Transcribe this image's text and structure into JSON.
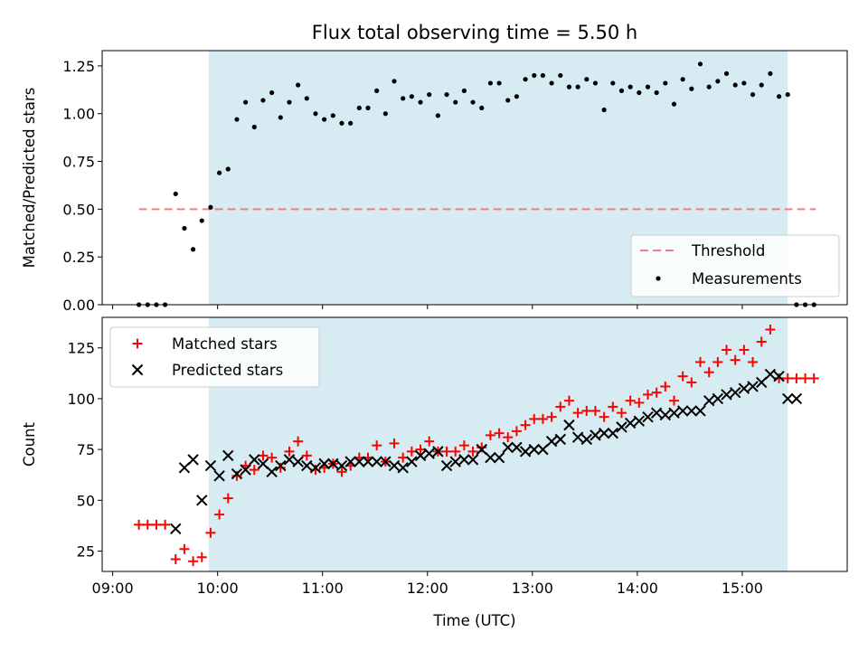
{
  "chart_data": [
    {
      "type": "scatter",
      "title": "Flux total observing time = 5.50 h",
      "xlabel": "",
      "ylabel": "Matched/Predicted stars",
      "xlim": [
        "09:00",
        "16:00"
      ],
      "ylim": [
        0,
        1.33
      ],
      "yticks": [
        "0.00",
        "0.25",
        "0.50",
        "0.75",
        "1.00",
        "1.25"
      ],
      "shaded_span": {
        "start": "09:55",
        "end": "15:26",
        "color": "#add8e6"
      },
      "threshold": {
        "name": "Threshold",
        "value": 0.5,
        "x_start": "09:15",
        "x_end": "15:42",
        "color": "#f08080"
      },
      "series": [
        {
          "name": "Measurements",
          "color": "#000000",
          "x": [
            "09:15",
            "09:20",
            "09:25",
            "09:30",
            "09:36",
            "09:41",
            "09:46",
            "09:51",
            "09:56",
            "10:01",
            "10:06",
            "10:11",
            "10:16",
            "10:21",
            "10:26",
            "10:31",
            "10:36",
            "10:41",
            "10:46",
            "10:51",
            "10:56",
            "11:01",
            "11:06",
            "11:11",
            "11:16",
            "11:21",
            "11:26",
            "11:31",
            "11:36",
            "11:41",
            "11:46",
            "11:51",
            "11:56",
            "12:01",
            "12:06",
            "12:11",
            "12:16",
            "12:21",
            "12:26",
            "12:31",
            "12:36",
            "12:41",
            "12:46",
            "12:51",
            "12:56",
            "13:01",
            "13:06",
            "13:11",
            "13:16",
            "13:21",
            "13:26",
            "13:31",
            "13:36",
            "13:41",
            "13:46",
            "13:51",
            "13:56",
            "14:01",
            "14:06",
            "14:11",
            "14:16",
            "14:21",
            "14:26",
            "14:31",
            "14:36",
            "14:41",
            "14:46",
            "14:51",
            "14:56",
            "15:01",
            "15:06",
            "15:11",
            "15:16",
            "15:21",
            "15:26",
            "15:31",
            "15:36",
            "15:41"
          ],
          "y": [
            0.0,
            0.0,
            0.0,
            0.0,
            0.58,
            0.4,
            0.29,
            0.44,
            0.51,
            0.69,
            0.71,
            0.97,
            1.06,
            0.93,
            1.07,
            1.11,
            0.98,
            1.06,
            1.15,
            1.08,
            1.0,
            0.97,
            0.99,
            0.95,
            0.95,
            1.03,
            1.03,
            1.12,
            1.0,
            1.17,
            1.08,
            1.09,
            1.06,
            1.1,
            0.99,
            1.1,
            1.06,
            1.12,
            1.06,
            1.03,
            1.16,
            1.16,
            1.07,
            1.09,
            1.18,
            1.2,
            1.2,
            1.16,
            1.2,
            1.14,
            1.14,
            1.18,
            1.16,
            1.02,
            1.16,
            1.12,
            1.14,
            1.11,
            1.14,
            1.11,
            1.16,
            1.05,
            1.18,
            1.13,
            1.26,
            1.14,
            1.17,
            1.21,
            1.15,
            1.16,
            1.1,
            1.15,
            1.21,
            1.09,
            1.1,
            0.0,
            0.0,
            0.0
          ]
        }
      ],
      "legend": {
        "position": "lower right",
        "entries": [
          "Threshold",
          "Measurements"
        ]
      }
    },
    {
      "type": "scatter",
      "title": "",
      "xlabel": "Time (UTC)",
      "ylabel": "Count",
      "xlim": [
        "09:00",
        "16:00"
      ],
      "ylim": [
        15,
        140
      ],
      "xticks": [
        "09:00",
        "10:00",
        "11:00",
        "12:00",
        "13:00",
        "14:00",
        "15:00"
      ],
      "yticks": [
        "25",
        "50",
        "75",
        "100",
        "125"
      ],
      "shaded_span": {
        "start": "09:55",
        "end": "15:26",
        "color": "#add8e6"
      },
      "series": [
        {
          "name": "Matched stars",
          "marker": "+",
          "color": "#ff0000",
          "x": [
            "09:15",
            "09:20",
            "09:25",
            "09:30",
            "09:36",
            "09:41",
            "09:46",
            "09:51",
            "09:56",
            "10:01",
            "10:06",
            "10:11",
            "10:16",
            "10:21",
            "10:26",
            "10:31",
            "10:36",
            "10:41",
            "10:46",
            "10:51",
            "10:56",
            "11:01",
            "11:06",
            "11:11",
            "11:16",
            "11:21",
            "11:26",
            "11:31",
            "11:36",
            "11:41",
            "11:46",
            "11:51",
            "11:56",
            "12:01",
            "12:06",
            "12:11",
            "12:16",
            "12:21",
            "12:26",
            "12:31",
            "12:36",
            "12:41",
            "12:46",
            "12:51",
            "12:56",
            "13:01",
            "13:06",
            "13:11",
            "13:16",
            "13:21",
            "13:26",
            "13:31",
            "13:36",
            "13:41",
            "13:46",
            "13:51",
            "13:56",
            "14:01",
            "14:06",
            "14:11",
            "14:16",
            "14:21",
            "14:26",
            "14:31",
            "14:36",
            "14:41",
            "14:46",
            "14:51",
            "14:56",
            "15:01",
            "15:06",
            "15:11",
            "15:16",
            "15:21",
            "15:26",
            "15:31",
            "15:36",
            "15:41"
          ],
          "y": [
            38,
            38,
            38,
            38,
            21,
            26,
            20,
            22,
            34,
            43,
            51,
            62,
            67,
            65,
            72,
            71,
            66,
            74,
            79,
            72,
            65,
            66,
            68,
            64,
            67,
            71,
            71,
            77,
            69,
            78,
            71,
            74,
            75,
            79,
            74,
            74,
            74,
            77,
            74,
            76,
            82,
            83,
            81,
            84,
            87,
            90,
            90,
            91,
            96,
            99,
            93,
            94,
            94,
            91,
            96,
            93,
            99,
            98,
            102,
            103,
            106,
            99,
            111,
            108,
            118,
            113,
            118,
            124,
            119,
            124,
            118,
            128,
            134,
            110,
            110,
            110,
            110,
            110
          ]
        },
        {
          "name": "Predicted stars",
          "marker": "x",
          "color": "#000000",
          "x": [
            "09:36",
            "09:41",
            "09:46",
            "09:51",
            "09:56",
            "10:01",
            "10:06",
            "10:11",
            "10:16",
            "10:21",
            "10:26",
            "10:31",
            "10:36",
            "10:41",
            "10:46",
            "10:51",
            "10:56",
            "11:01",
            "11:06",
            "11:11",
            "11:16",
            "11:21",
            "11:26",
            "11:31",
            "11:36",
            "11:41",
            "11:46",
            "11:51",
            "11:56",
            "12:01",
            "12:06",
            "12:11",
            "12:16",
            "12:21",
            "12:26",
            "12:31",
            "12:36",
            "12:41",
            "12:46",
            "12:51",
            "12:56",
            "13:01",
            "13:06",
            "13:11",
            "13:16",
            "13:21",
            "13:26",
            "13:31",
            "13:36",
            "13:41",
            "13:46",
            "13:51",
            "13:56",
            "14:01",
            "14:06",
            "14:11",
            "14:16",
            "14:21",
            "14:26",
            "14:31",
            "14:36",
            "14:41",
            "14:46",
            "14:51",
            "14:56",
            "15:01",
            "15:06",
            "15:11",
            "15:16",
            "15:21",
            "15:26"
          ],
          "y": [
            36,
            66,
            70,
            50,
            67,
            62,
            72,
            63,
            65,
            70,
            68,
            64,
            67,
            70,
            69,
            67,
            66,
            68,
            68,
            67,
            69,
            69,
            69,
            69,
            69,
            67,
            66,
            69,
            72,
            73,
            74,
            67,
            69,
            70,
            70,
            75,
            71,
            71,
            76,
            76,
            74,
            75,
            75,
            79,
            80,
            87,
            81,
            80,
            82,
            83,
            83,
            86,
            88,
            89,
            91,
            93,
            92,
            93,
            94,
            94,
            94,
            99,
            100,
            102,
            103,
            105,
            106,
            108,
            112,
            111,
            100
          ]
        }
      ],
      "extra_points": {
        "series": "Predicted stars",
        "x": [
          "15:31"
        ],
        "y": [
          100
        ]
      },
      "legend": {
        "position": "upper left",
        "entries": [
          "Matched stars",
          "Predicted stars"
        ]
      }
    }
  ]
}
